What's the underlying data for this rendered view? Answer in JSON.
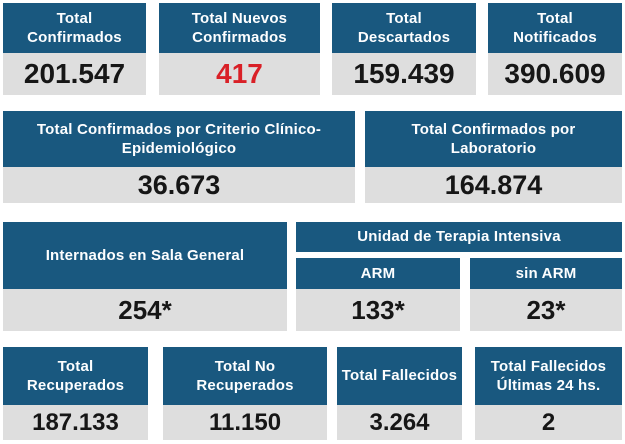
{
  "colors": {
    "header_bg": "#19587f",
    "header_text": "#fdfeff",
    "value_bg": "#dedede",
    "value_text": "#161616",
    "highlight": "#d92027",
    "page_bg": "#ffffff"
  },
  "top_row": [
    {
      "label": "Total Confirmados",
      "value": "201.547"
    },
    {
      "label": "Total Nuevos Confirmados",
      "value": "417"
    },
    {
      "label": "Total Descartados",
      "value": "159.439"
    },
    {
      "label": "Total Notificados",
      "value": "390.609"
    }
  ],
  "criteria_row": [
    {
      "label": "Total Confirmados por Criterio Clínico-Epidemiológico",
      "value": "36.673"
    },
    {
      "label": "Total Confirmados por Laboratorio",
      "value": "164.874"
    }
  ],
  "hospital_row": {
    "general": {
      "label": "Internados en Sala General",
      "value": "254*"
    },
    "uti_title": "Unidad de Terapia Intensiva",
    "uti": [
      {
        "label": "ARM",
        "value": "133*"
      },
      {
        "label": "sin ARM",
        "value": "23*"
      }
    ]
  },
  "bottom_row": [
    {
      "label": "Total Recuperados",
      "value": "187.133"
    },
    {
      "label": "Total No Recuperados",
      "value": "11.150"
    },
    {
      "label": "Total Fallecidos",
      "value": "3.264"
    },
    {
      "label": "Total Fallecidos Últimas 24 hs.",
      "value": "2"
    }
  ],
  "chart_data": {
    "type": "table",
    "title": "COVID-19 status dashboard (Spanish)",
    "categories": [
      "Total Confirmados",
      "Total Nuevos Confirmados",
      "Total Descartados",
      "Total Notificados",
      "Total Confirmados por Criterio Clínico-Epidemiológico",
      "Total Confirmados por Laboratorio",
      "Internados en Sala General",
      "Unidad de Terapia Intensiva - ARM",
      "Unidad de Terapia Intensiva - sin ARM",
      "Total Recuperados",
      "Total No Recuperados",
      "Total Fallecidos",
      "Total Fallecidos Últimas 24 hs."
    ],
    "values": [
      201547,
      417,
      159439,
      390609,
      36673,
      164874,
      254,
      133,
      23,
      187133,
      11150,
      3264,
      2
    ],
    "display_values": [
      "201.547",
      "417",
      "159.439",
      "390.609",
      "36.673",
      "164.874",
      "254*",
      "133*",
      "23*",
      "187.133",
      "11.150",
      "3.264",
      "2"
    ]
  }
}
